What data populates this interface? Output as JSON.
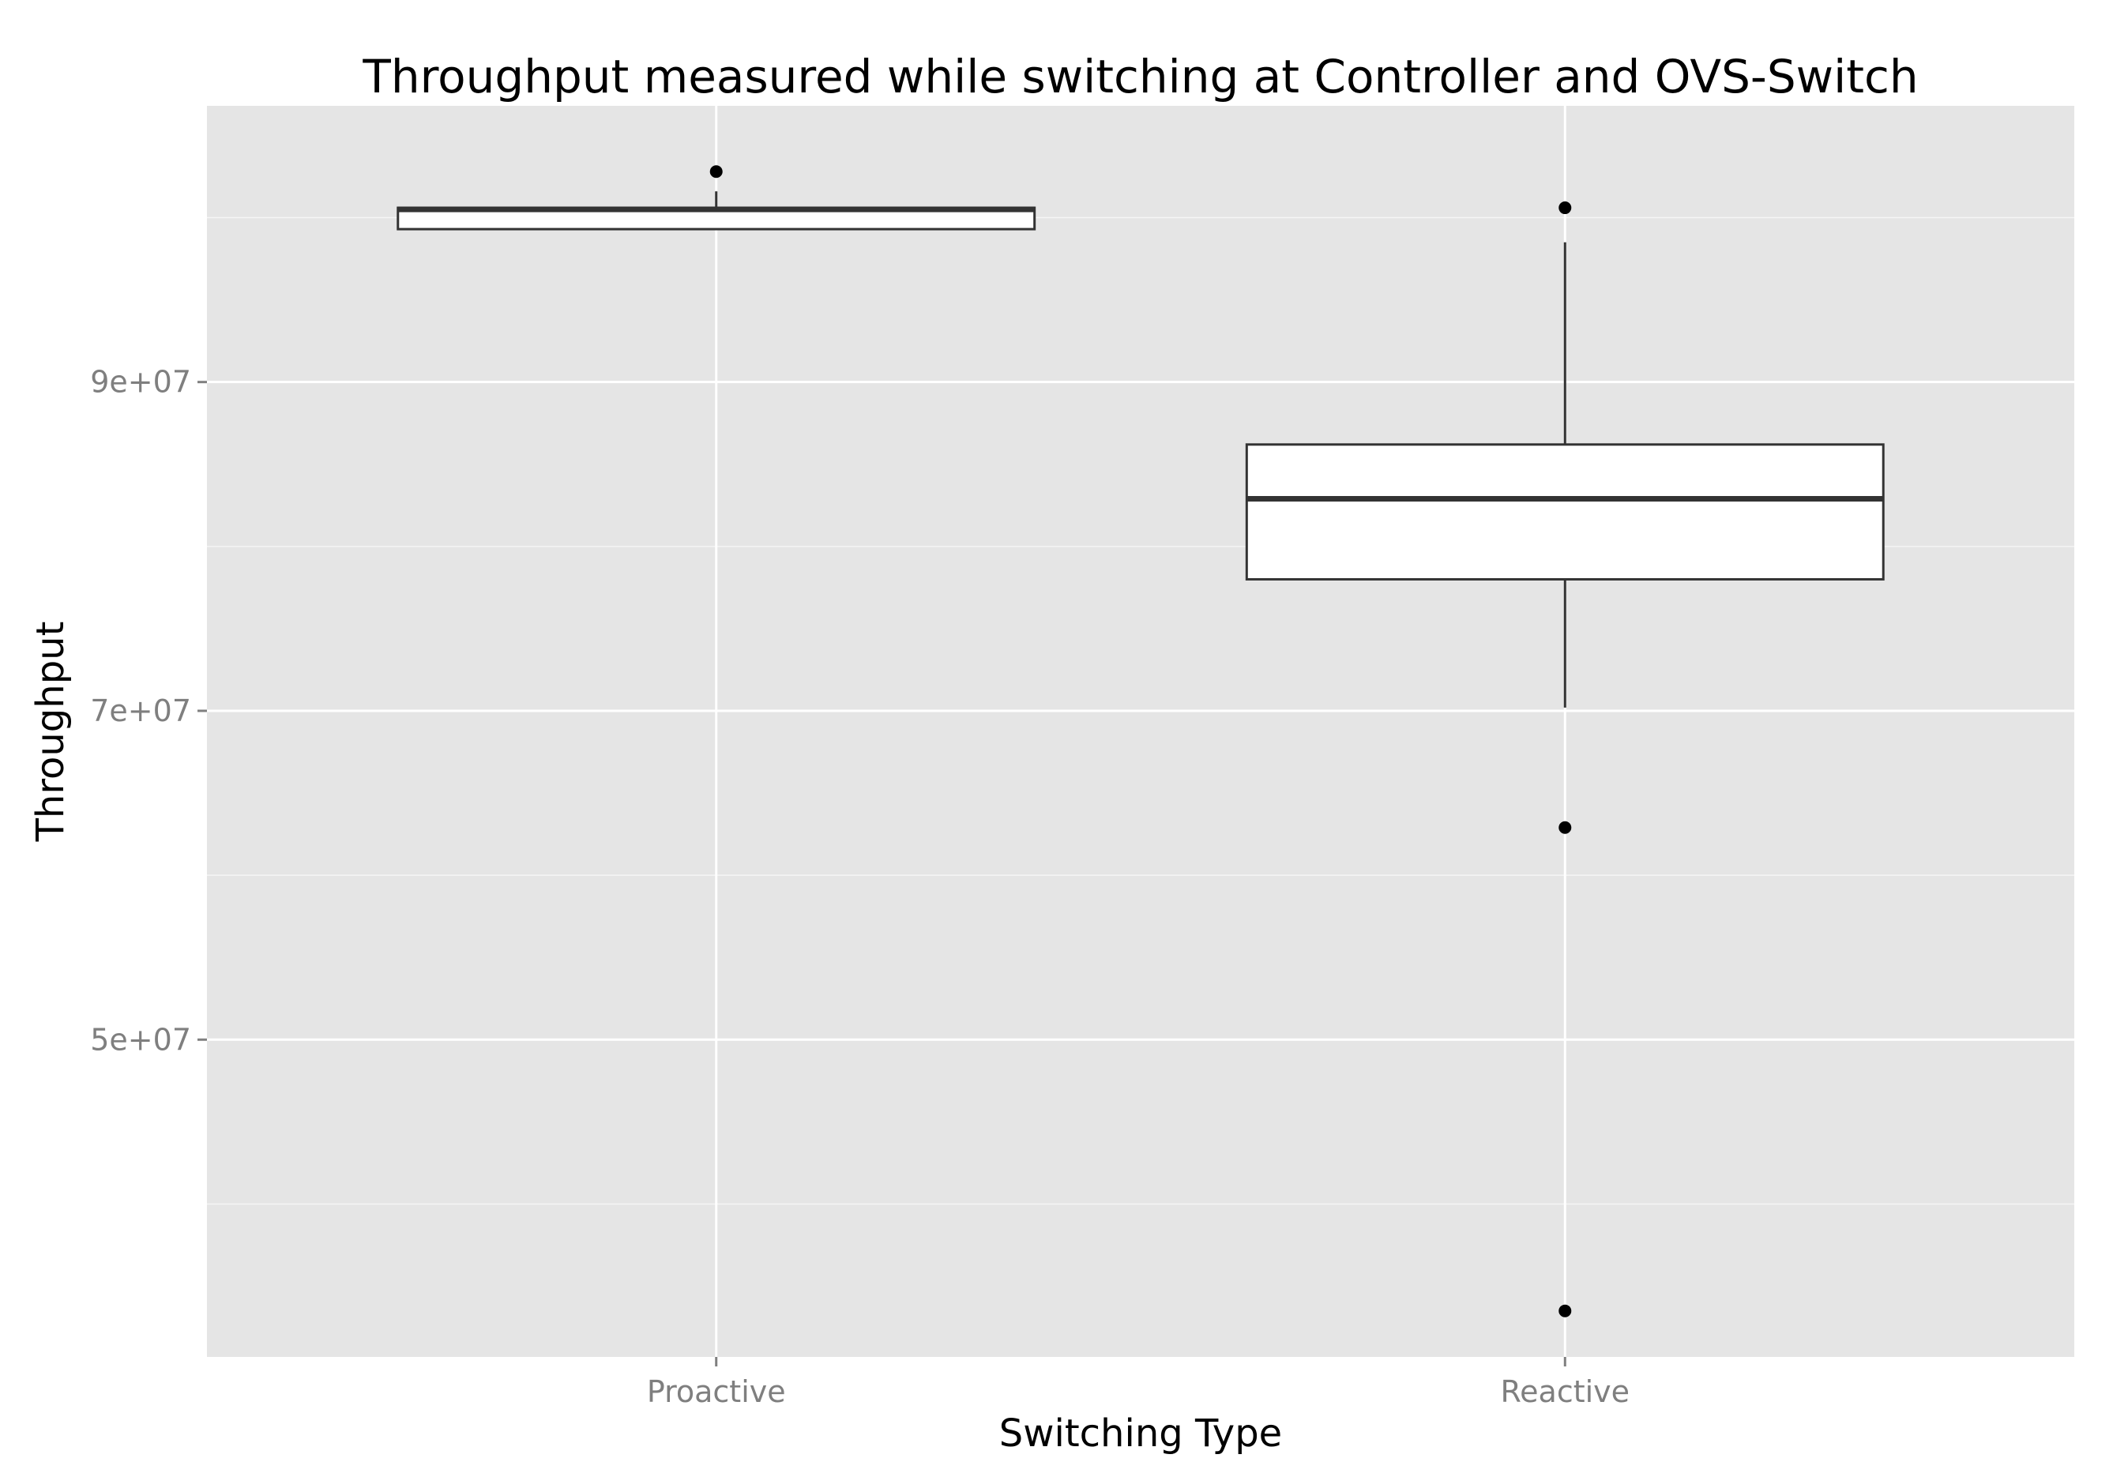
{
  "chart_data": {
    "type": "box",
    "title": "Throughput measured while switching at Controller and OVS-Switch",
    "xlabel": "Switching Type",
    "ylabel": "Throughput",
    "categories": [
      "Proactive",
      "Reactive"
    ],
    "boxes": [
      {
        "category": "Proactive",
        "whisker_low": 99300000,
        "q1": 99300000,
        "median": 100500000,
        "q3": 100600000,
        "whisker_high": 101600000,
        "outliers": [
          102800000
        ]
      },
      {
        "category": "Reactive",
        "whisker_low": 70200000,
        "q1": 78000000,
        "median": 82900000,
        "q3": 86200000,
        "whisker_high": 98500000,
        "outliers": [
          100600000,
          62900000,
          33500000
        ]
      }
    ],
    "y_ticks": [
      {
        "value": 50000000,
        "label": "5e+07"
      },
      {
        "value": 70000000,
        "label": "7e+07"
      },
      {
        "value": 90000000,
        "label": "9e+07"
      }
    ],
    "ylim": [
      30700000,
      106800000
    ],
    "grid": true,
    "colors": {
      "panel": "#e5e5e5",
      "grid": "#ffffff",
      "box_fill": "#ffffff",
      "box_line": "#333333",
      "point": "#000000",
      "tick": "#7f7f7f"
    }
  }
}
